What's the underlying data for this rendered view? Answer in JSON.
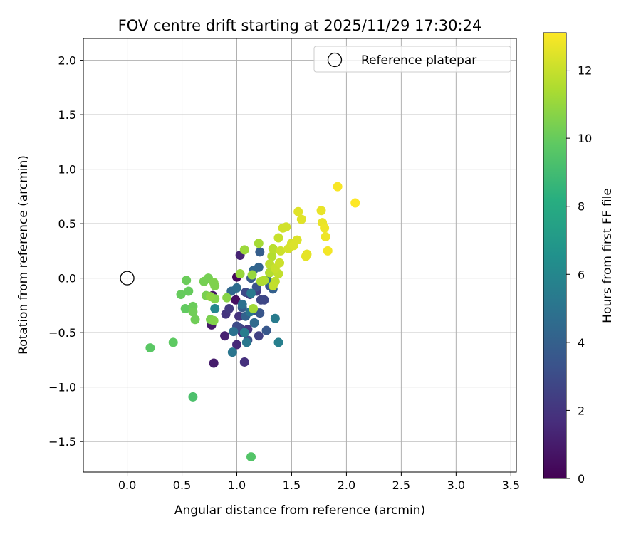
{
  "chart_data": {
    "type": "scatter",
    "title": "FOV centre drift starting at 2025/11/29 17:30:24",
    "xlabel": "Angular distance from reference (arcmin)",
    "ylabel": "Rotation from reference (arcmin)",
    "xlim": [
      -0.4,
      3.55
    ],
    "ylim": [
      -1.78,
      2.2
    ],
    "xticks": [
      0.0,
      0.5,
      1.0,
      1.5,
      2.0,
      2.5,
      3.0,
      3.5
    ],
    "xtick_labels": [
      "0.0",
      "0.5",
      "1.0",
      "1.5",
      "2.0",
      "2.5",
      "3.0",
      "3.5"
    ],
    "yticks": [
      -1.5,
      -1.0,
      -0.5,
      0.0,
      0.5,
      1.0,
      1.5,
      2.0
    ],
    "ytick_labels": [
      "−1.5",
      "−1.0",
      "−0.5",
      "0.0",
      "0.5",
      "1.0",
      "1.5",
      "2.0"
    ],
    "grid": true,
    "legend": {
      "position": "top-right",
      "entries": [
        "Reference platepar"
      ]
    },
    "reference_point": {
      "x": 0.0,
      "y": 0.0
    },
    "colorbar": {
      "label": "Hours from first FF file",
      "range": [
        0,
        13.1
      ],
      "ticks": [
        0,
        2,
        4,
        6,
        8,
        10,
        12
      ],
      "tick_labels": [
        "0",
        "2",
        "4",
        "6",
        "8",
        "10",
        "12"
      ],
      "colormap": "viridis"
    },
    "points": [
      {
        "x": 1.0,
        "y": 0.01,
        "t": 0.3
      },
      {
        "x": 0.99,
        "y": -0.2,
        "t": 0.5
      },
      {
        "x": 0.78,
        "y": -0.16,
        "t": 0.7
      },
      {
        "x": 0.77,
        "y": -0.43,
        "t": 0.9
      },
      {
        "x": 0.79,
        "y": -0.78,
        "t": 1.0
      },
      {
        "x": 0.89,
        "y": -0.53,
        "t": 1.2
      },
      {
        "x": 1.03,
        "y": 0.21,
        "t": 1.3
      },
      {
        "x": 1.0,
        "y": -0.61,
        "t": 1.5
      },
      {
        "x": 1.05,
        "y": -0.5,
        "t": 1.6
      },
      {
        "x": 1.07,
        "y": -0.77,
        "t": 1.8
      },
      {
        "x": 1.02,
        "y": -0.35,
        "t": 1.9
      },
      {
        "x": 0.9,
        "y": -0.33,
        "t": 2.0
      },
      {
        "x": 1.1,
        "y": -0.47,
        "t": 2.1
      },
      {
        "x": 0.93,
        "y": -0.28,
        "t": 2.2
      },
      {
        "x": 1.12,
        "y": -0.15,
        "t": 2.3
      },
      {
        "x": 1.18,
        "y": -0.12,
        "t": 2.4
      },
      {
        "x": 1.2,
        "y": -0.53,
        "t": 2.5
      },
      {
        "x": 1.03,
        "y": -0.46,
        "t": 2.6
      },
      {
        "x": 1.22,
        "y": -0.2,
        "t": 2.7
      },
      {
        "x": 1.25,
        "y": -0.2,
        "t": 2.8
      },
      {
        "x": 1.08,
        "y": -0.13,
        "t": 2.9
      },
      {
        "x": 1.0,
        "y": -0.44,
        "t": 3.0
      },
      {
        "x": 1.16,
        "y": -0.3,
        "t": 3.1
      },
      {
        "x": 1.1,
        "y": -0.57,
        "t": 3.2
      },
      {
        "x": 1.18,
        "y": -0.08,
        "t": 3.3
      },
      {
        "x": 1.3,
        "y": -0.07,
        "t": 3.4
      },
      {
        "x": 1.21,
        "y": -0.32,
        "t": 3.5
      },
      {
        "x": 1.27,
        "y": -0.48,
        "t": 3.6
      },
      {
        "x": 1.13,
        "y": 0.0,
        "t": 3.7
      },
      {
        "x": 1.05,
        "y": -0.27,
        "t": 3.8
      },
      {
        "x": 1.21,
        "y": 0.24,
        "t": 3.9
      },
      {
        "x": 1.33,
        "y": -0.1,
        "t": 4.0
      },
      {
        "x": 1.08,
        "y": -0.35,
        "t": 4.1
      },
      {
        "x": 1.2,
        "y": 0.1,
        "t": 4.2
      },
      {
        "x": 1.15,
        "y": 0.07,
        "t": 4.3
      },
      {
        "x": 0.95,
        "y": -0.12,
        "t": 4.4
      },
      {
        "x": 1.16,
        "y": -0.41,
        "t": 4.5
      },
      {
        "x": 1.0,
        "y": -0.09,
        "t": 4.6
      },
      {
        "x": 1.28,
        "y": -0.02,
        "t": 4.7
      },
      {
        "x": 1.05,
        "y": -0.24,
        "t": 4.8
      },
      {
        "x": 0.97,
        "y": -0.49,
        "t": 4.9
      },
      {
        "x": 1.12,
        "y": -0.31,
        "t": 5.0
      },
      {
        "x": 0.96,
        "y": -0.68,
        "t": 5.1
      },
      {
        "x": 1.09,
        "y": -0.59,
        "t": 5.2
      },
      {
        "x": 1.13,
        "y": -0.14,
        "t": 5.3
      },
      {
        "x": 1.35,
        "y": -0.37,
        "t": 5.4
      },
      {
        "x": 1.07,
        "y": -0.5,
        "t": 5.5
      },
      {
        "x": 1.38,
        "y": -0.59,
        "t": 5.6
      },
      {
        "x": 0.8,
        "y": -0.28,
        "t": 6.0
      },
      {
        "x": 1.3,
        "y": 0.05,
        "t": 6.2
      },
      {
        "x": 0.6,
        "y": -1.09,
        "t": 9.3
      },
      {
        "x": 1.13,
        "y": -1.64,
        "t": 9.5
      },
      {
        "x": 0.21,
        "y": -0.64,
        "t": 9.7
      },
      {
        "x": 0.42,
        "y": -0.59,
        "t": 9.8
      },
      {
        "x": 0.53,
        "y": -0.28,
        "t": 9.9
      },
      {
        "x": 0.49,
        "y": -0.15,
        "t": 10.0
      },
      {
        "x": 0.56,
        "y": -0.12,
        "t": 10.0
      },
      {
        "x": 0.54,
        "y": -0.02,
        "t": 10.1
      },
      {
        "x": 0.6,
        "y": -0.26,
        "t": 10.1
      },
      {
        "x": 0.6,
        "y": -0.31,
        "t": 10.2
      },
      {
        "x": 0.62,
        "y": -0.38,
        "t": 10.2
      },
      {
        "x": 0.7,
        "y": -0.03,
        "t": 10.3
      },
      {
        "x": 0.74,
        "y": 0.0,
        "t": 10.3
      },
      {
        "x": 0.72,
        "y": -0.16,
        "t": 10.4
      },
      {
        "x": 0.76,
        "y": -0.38,
        "t": 10.4
      },
      {
        "x": 0.79,
        "y": -0.04,
        "t": 10.5
      },
      {
        "x": 0.8,
        "y": -0.07,
        "t": 10.5
      },
      {
        "x": 0.79,
        "y": -0.39,
        "t": 10.6
      },
      {
        "x": 0.8,
        "y": -0.19,
        "t": 10.6
      },
      {
        "x": 0.91,
        "y": -0.18,
        "t": 10.7
      },
      {
        "x": 0.76,
        "y": -0.17,
        "t": 10.8
      },
      {
        "x": 1.14,
        "y": 0.03,
        "t": 11.0
      },
      {
        "x": 1.03,
        "y": 0.04,
        "t": 11.0
      },
      {
        "x": 1.07,
        "y": 0.26,
        "t": 11.1
      },
      {
        "x": 1.15,
        "y": -0.28,
        "t": 11.2
      },
      {
        "x": 1.2,
        "y": 0.32,
        "t": 11.3
      },
      {
        "x": 1.22,
        "y": -0.03,
        "t": 11.4
      },
      {
        "x": 1.25,
        "y": -0.02,
        "t": 11.5
      },
      {
        "x": 1.3,
        "y": 0.05,
        "t": 11.6
      },
      {
        "x": 1.32,
        "y": 0.2,
        "t": 11.6
      },
      {
        "x": 1.33,
        "y": 0.27,
        "t": 11.7
      },
      {
        "x": 1.3,
        "y": 0.13,
        "t": 11.8
      },
      {
        "x": 1.35,
        "y": -0.03,
        "t": 11.8
      },
      {
        "x": 1.38,
        "y": 0.04,
        "t": 11.9
      },
      {
        "x": 1.33,
        "y": -0.07,
        "t": 11.9
      },
      {
        "x": 1.35,
        "y": 0.09,
        "t": 12.0
      },
      {
        "x": 1.38,
        "y": 0.37,
        "t": 12.0
      },
      {
        "x": 1.4,
        "y": 0.25,
        "t": 12.1
      },
      {
        "x": 1.39,
        "y": 0.14,
        "t": 12.1
      },
      {
        "x": 1.42,
        "y": 0.46,
        "t": 12.2
      },
      {
        "x": 1.45,
        "y": 0.47,
        "t": 12.2
      },
      {
        "x": 1.47,
        "y": 0.27,
        "t": 12.3
      },
      {
        "x": 1.5,
        "y": 0.32,
        "t": 12.3
      },
      {
        "x": 1.52,
        "y": 0.3,
        "t": 12.4
      },
      {
        "x": 1.55,
        "y": 0.35,
        "t": 12.4
      },
      {
        "x": 1.56,
        "y": 0.61,
        "t": 12.5
      },
      {
        "x": 1.59,
        "y": 0.54,
        "t": 12.5
      },
      {
        "x": 1.63,
        "y": 0.2,
        "t": 12.6
      },
      {
        "x": 1.64,
        "y": 0.22,
        "t": 12.6
      },
      {
        "x": 1.77,
        "y": 0.62,
        "t": 12.7
      },
      {
        "x": 1.78,
        "y": 0.51,
        "t": 12.7
      },
      {
        "x": 1.8,
        "y": 0.46,
        "t": 12.8
      },
      {
        "x": 1.81,
        "y": 0.38,
        "t": 12.8
      },
      {
        "x": 1.83,
        "y": 0.25,
        "t": 12.9
      },
      {
        "x": 1.92,
        "y": 0.84,
        "t": 13.0
      },
      {
        "x": 2.08,
        "y": 0.69,
        "t": 13.1
      }
    ]
  }
}
